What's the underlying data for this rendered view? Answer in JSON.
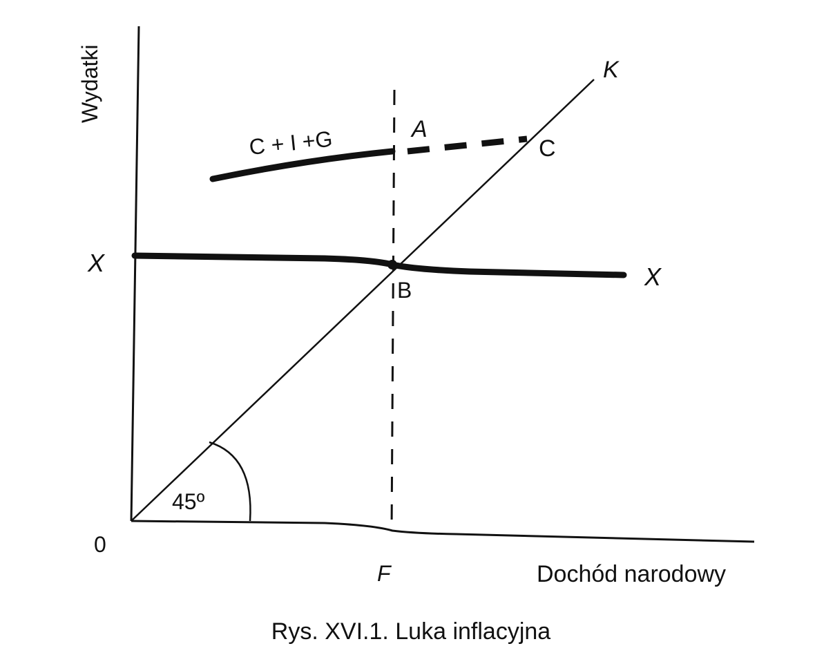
{
  "labels": {
    "y_axis": "Wydatki",
    "x_axis": "Dochód narodowy",
    "origin": "0",
    "curve_cig": "C + I +G",
    "point_a": "A",
    "point_b": "B",
    "point_c": "C",
    "point_k": "K",
    "x_left": "X",
    "x_right": "X",
    "point_f": "F",
    "angle": "45º",
    "caption": "Rys. XVI.1. Luka inflacyjna"
  },
  "colors": {
    "ink": "#111111",
    "background": "#ffffff"
  }
}
